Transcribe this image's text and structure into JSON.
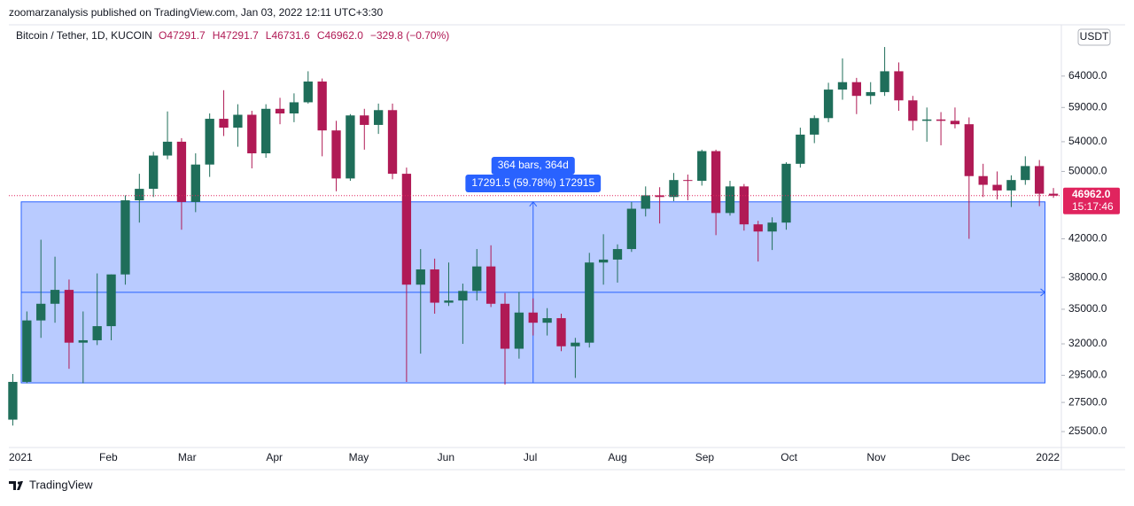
{
  "header": "zoomarzanalysis published on TradingView.com, Jan 03, 2022 12:11 UTC+3:30",
  "footer": "TradingView",
  "chart_data": {
    "type": "candlestick",
    "title": "Bitcoin / Tether, 1D, KUCOIN",
    "ohlc_legend": [
      "O47291.7",
      "H47291.7",
      "L46731.6",
      "C46962.0",
      "−329.8 (−0.70%)"
    ],
    "currency": "USDT",
    "log_scale": true,
    "grid": false,
    "up_color": "#1f6e5a",
    "down_color": "#b01a55",
    "x": [
      -3,
      2,
      7,
      12,
      17,
      22,
      27,
      32,
      37,
      42,
      47,
      52,
      57,
      62,
      67,
      72,
      77,
      82,
      87,
      92,
      97,
      102,
      107,
      112,
      117,
      122,
      127,
      132,
      137,
      142,
      147,
      152,
      157,
      162,
      167,
      172,
      177,
      182,
      187,
      192,
      197,
      202,
      207,
      212,
      217,
      222,
      227,
      232,
      237,
      242,
      247,
      252,
      257,
      262,
      267,
      272,
      277,
      282,
      287,
      292,
      297,
      302,
      307,
      312,
      317,
      322,
      327,
      332,
      337,
      342,
      347,
      352,
      357,
      362,
      367
    ],
    "open": [
      26300,
      29000,
      34000,
      35500,
      36800,
      32100,
      32300,
      33500,
      38300,
      46400,
      47800,
      52100,
      54000,
      46200,
      50900,
      57300,
      56000,
      57900,
      52400,
      58800,
      58100,
      59800,
      63100,
      55600,
      49100,
      57800,
      56400,
      58600,
      49700,
      37300,
      38800,
      35600,
      35800,
      36700,
      39100,
      35500,
      31600,
      34700,
      33800,
      34200,
      31800,
      32100,
      39500,
      39800,
      40900,
      45400,
      47000,
      46800,
      48900,
      48800,
      52700,
      44900,
      48100,
      43600,
      42800,
      43800,
      51000,
      55000,
      57400,
      61800,
      63000,
      60800,
      61400,
      64800,
      60100,
      57000,
      57200,
      57000,
      56500,
      49400,
      48300,
      47600,
      48900,
      50700,
      47200
    ],
    "high": [
      29600,
      34800,
      41900,
      40100,
      37800,
      34800,
      38400,
      38300,
      47000,
      49700,
      52600,
      58400,
      54500,
      52400,
      58100,
      61700,
      59500,
      58500,
      59500,
      60500,
      61200,
      64800,
      63600,
      57000,
      58000,
      58800,
      59600,
      59600,
      50500,
      40900,
      39900,
      39500,
      37400,
      40900,
      41300,
      36500,
      36600,
      36000,
      35100,
      34600,
      32500,
      40500,
      42500,
      41400,
      46200,
      48100,
      48000,
      49800,
      49600,
      52900,
      52900,
      48800,
      48400,
      44000,
      44400,
      51200,
      56000,
      57800,
      62900,
      67000,
      63700,
      63000,
      69000,
      66300,
      60800,
      59000,
      58300,
      59000,
      57500,
      51000,
      50000,
      49500,
      52000,
      51500,
      47900
    ],
    "low": [
      25900,
      28900,
      32500,
      33800,
      30000,
      28900,
      31900,
      32300,
      37300,
      43800,
      46800,
      51600,
      43000,
      45000,
      49300,
      54800,
      53300,
      50400,
      51800,
      56500,
      56800,
      59600,
      52000,
      47500,
      48800,
      52900,
      55100,
      49000,
      29000,
      31200,
      34600,
      35300,
      32000,
      35800,
      35200,
      28800,
      30800,
      32700,
      32700,
      31400,
      29300,
      31700,
      37300,
      37500,
      40600,
      44500,
      43700,
      46300,
      46400,
      48200,
      42400,
      44600,
      42900,
      39600,
      40800,
      43000,
      50500,
      53800,
      56800,
      60200,
      58000,
      59500,
      60800,
      58500,
      55600,
      54000,
      53500,
      55900,
      42000,
      46800,
      46500,
      45600,
      48300,
      45700,
      46700
    ],
    "close": [
      29000,
      34000,
      35500,
      36800,
      32100,
      32300,
      33500,
      38300,
      46400,
      47800,
      52100,
      54000,
      46200,
      50900,
      57300,
      56000,
      57900,
      52400,
      58800,
      58100,
      59800,
      63100,
      55600,
      49100,
      57800,
      56400,
      58600,
      49700,
      37300,
      38800,
      35600,
      35800,
      36700,
      39100,
      35500,
      31600,
      34700,
      33800,
      34200,
      31800,
      32100,
      39500,
      39800,
      40900,
      45400,
      47000,
      46800,
      48900,
      48800,
      52700,
      44900,
      48100,
      43600,
      42800,
      43800,
      51000,
      55000,
      57400,
      61800,
      63000,
      60800,
      61400,
      64800,
      60100,
      57000,
      57200,
      57000,
      56500,
      49400,
      48300,
      47600,
      48900,
      50700,
      47200,
      46962
    ],
    "xlim": [
      -4.4,
      369.5
    ],
    "xticks": [
      {
        "value": 0,
        "label": "2021"
      },
      {
        "value": 31,
        "label": "Feb"
      },
      {
        "value": 59,
        "label": "Mar"
      },
      {
        "value": 90,
        "label": "Apr"
      },
      {
        "value": 120,
        "label": "May"
      },
      {
        "value": 151,
        "label": "Jun"
      },
      {
        "value": 181,
        "label": "Jul"
      },
      {
        "value": 212,
        "label": "Aug"
      },
      {
        "value": 243,
        "label": "Sep"
      },
      {
        "value": 273,
        "label": "Oct"
      },
      {
        "value": 304,
        "label": "Nov"
      },
      {
        "value": 334,
        "label": "Dec"
      },
      {
        "value": 365,
        "label": "2022"
      }
    ],
    "ylim": [
      24470,
      73080
    ],
    "yticks": [
      {
        "value": 25500,
        "label": "25500.0"
      },
      {
        "value": 27500,
        "label": "27500.0"
      },
      {
        "value": 29500,
        "label": "29500.0"
      },
      {
        "value": 32000,
        "label": "32000.0"
      },
      {
        "value": 35000,
        "label": "35000.0"
      },
      {
        "value": 38000,
        "label": "38000.0"
      },
      {
        "value": 42000,
        "label": "42000.0"
      },
      {
        "value": 50000,
        "label": "50000.0"
      },
      {
        "value": 54000,
        "label": "54000.0"
      },
      {
        "value": 59000,
        "label": "59000.0"
      },
      {
        "value": 64000,
        "label": "64000.0"
      }
    ],
    "last_price": {
      "value": 46962.0,
      "label": "46962.0"
    },
    "countdown": "15:17:46",
    "measure": {
      "from_x": 0,
      "to_x": 364,
      "from_price": 28925,
      "to_price": 46216.5,
      "bars_label": "364 bars, 364d",
      "change_label": "17291.5 (59.78%) 172915"
    }
  }
}
